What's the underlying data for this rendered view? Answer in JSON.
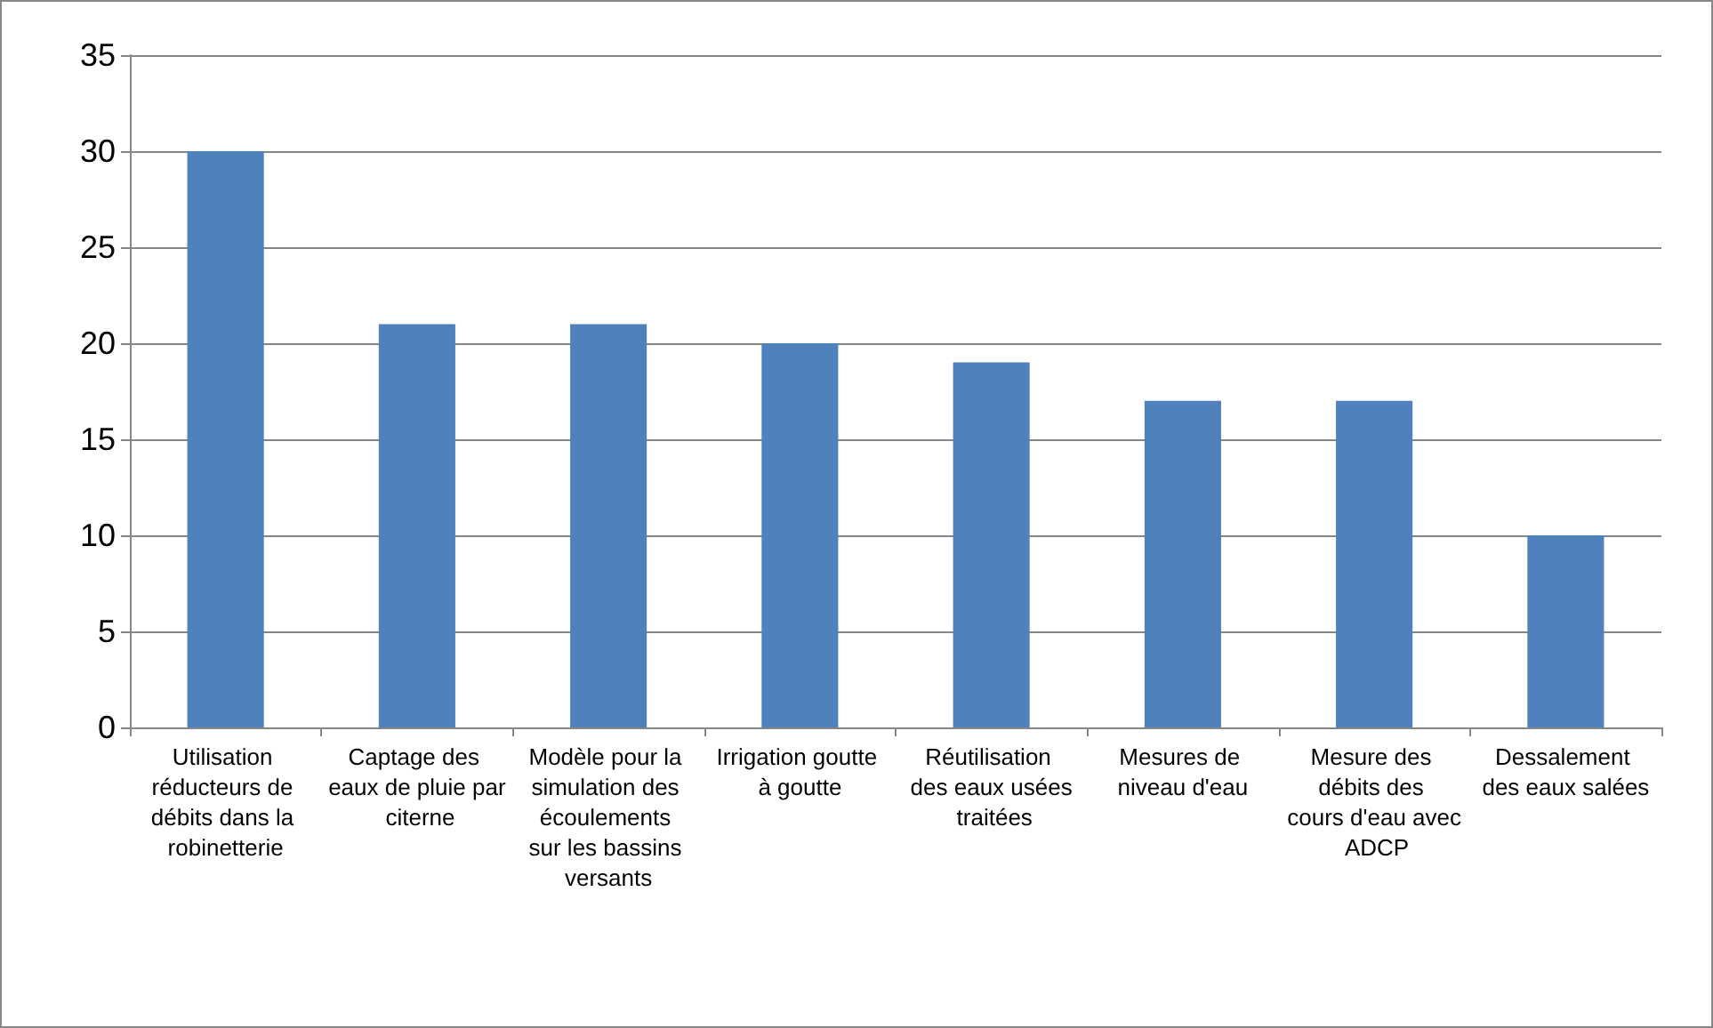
{
  "chart_data": {
    "type": "bar",
    "categories": [
      "Utilisation réducteurs de débits dans la robinetterie",
      "Captage des eaux de pluie par citerne",
      "Modèle pour la simulation des écoulements sur les bassins versants",
      "Irrigation goutte à goutte",
      "Réutilisation des eaux usées traitées",
      "Mesures de niveau d'eau",
      "Mesure des débits des cours d'eau avec ADCP",
      "Dessalement des eaux salées"
    ],
    "values": [
      30,
      21,
      21,
      20,
      19,
      17,
      17,
      10
    ],
    "color": "#4f81bd",
    "ylim": [
      0,
      35
    ],
    "yticks": [
      0,
      5,
      10,
      15,
      20,
      25,
      30,
      35
    ],
    "grid": "y"
  }
}
